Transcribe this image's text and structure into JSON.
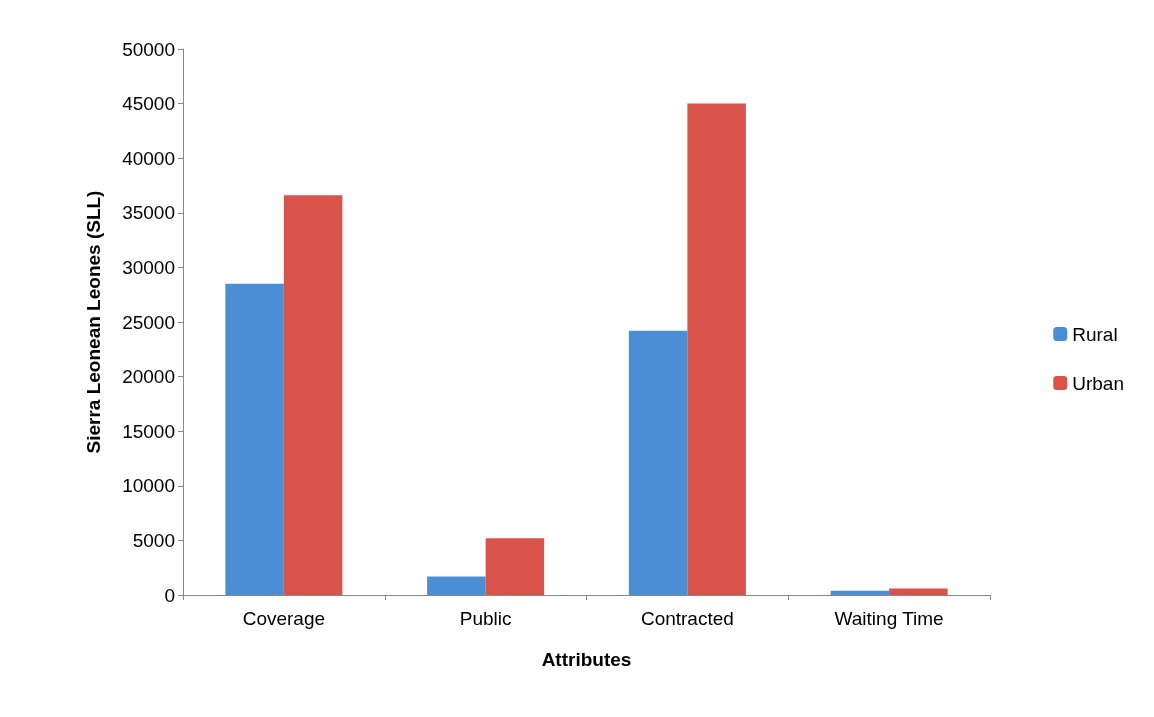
{
  "chart_data": {
    "type": "bar",
    "xlabel": "Attributes",
    "ylabel": "Sierra Leonean Leones (SLL)",
    "categories": [
      "Coverage",
      "Public",
      "Contracted",
      "Waiting Time"
    ],
    "series": [
      {
        "name": "Rural",
        "color": "#4a8fd6",
        "values": [
          28500,
          1700,
          24200,
          400
        ]
      },
      {
        "name": "Urban",
        "color": "#d9534a",
        "values": [
          36600,
          5200,
          45000,
          600
        ]
      }
    ],
    "ylim": [
      0,
      50000
    ],
    "yticks": [
      0,
      5000,
      10000,
      15000,
      20000,
      25000,
      30000,
      35000,
      40000,
      45000,
      50000
    ],
    "grid": false,
    "legend": "right"
  }
}
